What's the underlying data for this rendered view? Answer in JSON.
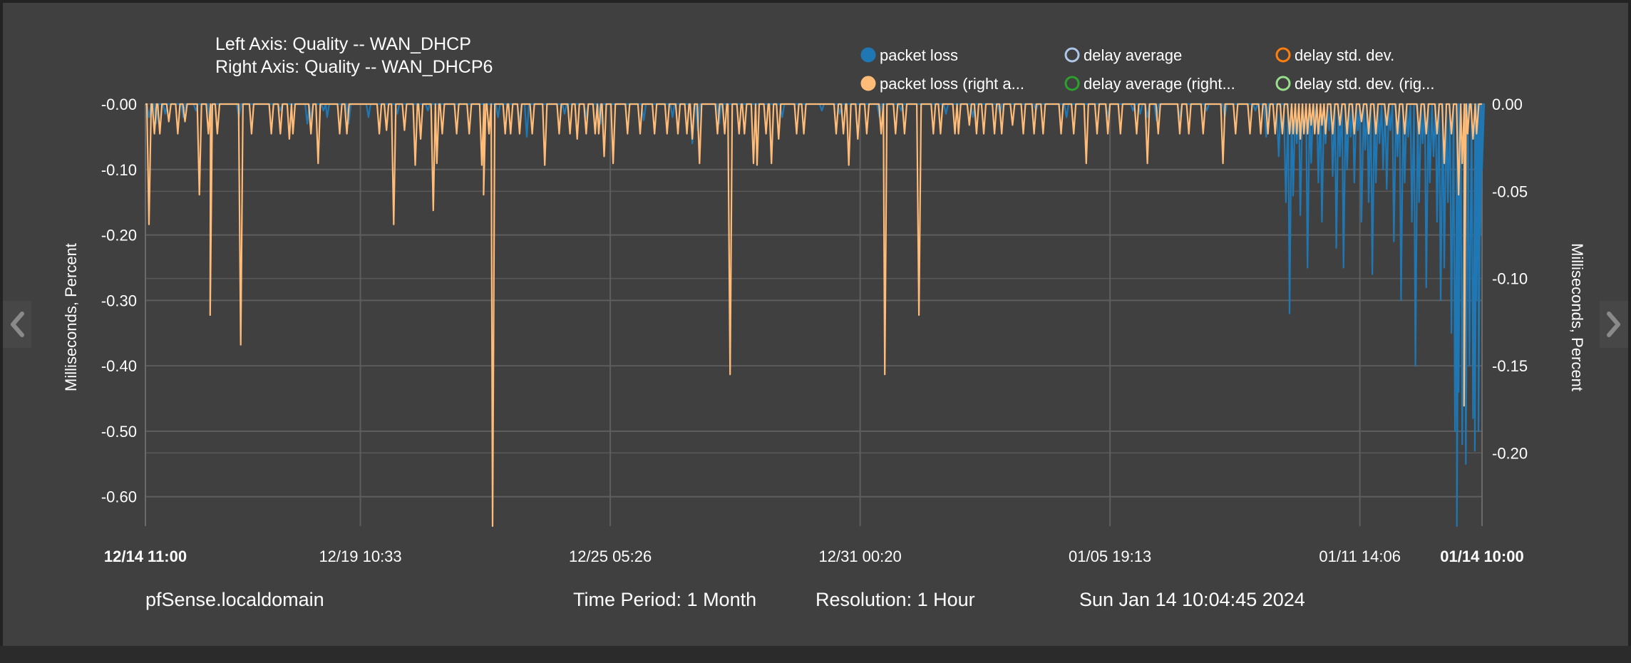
{
  "header": {
    "left_axis_label": "Left Axis: Quality -- WAN_DHCP",
    "right_axis_label": "Right Axis: Quality -- WAN_DHCP6"
  },
  "legend": [
    {
      "label": "packet loss",
      "color": "#1f77b4",
      "filled": true
    },
    {
      "label": "delay average",
      "color": "#aec7e8",
      "filled": false
    },
    {
      "label": "delay std. dev.",
      "color": "#ff7f0e",
      "filled": false
    },
    {
      "label": "packet loss (right a...",
      "color": "#ffbb78",
      "filled": true
    },
    {
      "label": "delay average (right...",
      "color": "#2ca02c",
      "filled": false
    },
    {
      "label": "delay std. dev. (rig...",
      "color": "#98df8a",
      "filled": false
    }
  ],
  "footer": {
    "hostname": "pfSense.localdomain",
    "time_period": "Time Period: 1 Month",
    "resolution": "Resolution: 1 Hour",
    "timestamp": "Sun Jan 14 10:04:45 2024"
  },
  "nav": {
    "prev_icon": "chevron-left-icon",
    "next_icon": "chevron-right-icon"
  },
  "chart_data": {
    "type": "line",
    "xlabel": "",
    "ylabel": "Milliseconds, Percent",
    "y2label": "Milliseconds, Percent",
    "x_range": [
      "12/14 11:00",
      "01/14 10:00"
    ],
    "x_range_hours": [
      0,
      743
    ],
    "x_ticks": [
      {
        "label": "12/14 11:00",
        "hour": 0,
        "bold": true
      },
      {
        "label": "12/19 10:33",
        "hour": 119.5,
        "bold": false
      },
      {
        "label": "12/25 05:26",
        "hour": 258.4,
        "bold": false
      },
      {
        "label": "12/31 00:20",
        "hour": 397.3,
        "bold": false
      },
      {
        "label": "01/05 19:13",
        "hour": 536.2,
        "bold": false
      },
      {
        "label": "01/11 14:06",
        "hour": 675.1,
        "bold": false
      },
      {
        "label": "01/14 10:00",
        "hour": 743,
        "bold": true
      }
    ],
    "ylim": [
      -0.645,
      0
    ],
    "y_ticks": [
      {
        "value": 0,
        "label": "-0.00"
      },
      {
        "value": -0.1,
        "label": "-0.10"
      },
      {
        "value": -0.2,
        "label": "-0.20"
      },
      {
        "value": -0.3,
        "label": "-0.30"
      },
      {
        "value": -0.4,
        "label": "-0.40"
      },
      {
        "value": -0.5,
        "label": "-0.50"
      },
      {
        "value": -0.6,
        "label": "-0.60"
      }
    ],
    "y2lim": [
      -0.242,
      0
    ],
    "y2_ticks": [
      {
        "value": 0,
        "label": "0.00"
      },
      {
        "value": -0.05,
        "label": "-0.05"
      },
      {
        "value": -0.1,
        "label": "-0.10"
      },
      {
        "value": -0.15,
        "label": "-0.15"
      },
      {
        "value": -0.2,
        "label": "-0.20"
      }
    ],
    "grid": true,
    "legend_position": "top-right",
    "series": [
      {
        "name": "packet loss",
        "axis": "left",
        "color": "#1f77b4",
        "baseline": 0,
        "points": [
          [
            2,
            -0.02
          ],
          [
            6,
            -0.03
          ],
          [
            11,
            -0.015
          ],
          [
            21,
            -0.02
          ],
          [
            28,
            -0.01
          ],
          [
            36,
            -0.03
          ],
          [
            52,
            -0.02
          ],
          [
            75,
            -0.01
          ],
          [
            90,
            -0.03
          ],
          [
            92,
            -0.025
          ],
          [
            99,
            -0.01
          ],
          [
            101,
            -0.02
          ],
          [
            113,
            -0.03
          ],
          [
            124,
            -0.02
          ],
          [
            140,
            -0.015
          ],
          [
            157,
            -0.01
          ],
          [
            196,
            -0.02
          ],
          [
            208,
            -0.03
          ],
          [
            212,
            -0.05
          ],
          [
            233,
            -0.015
          ],
          [
            245,
            -0.02
          ],
          [
            253,
            -0.03
          ],
          [
            277,
            -0.025
          ],
          [
            293,
            -0.02
          ],
          [
            304,
            -0.06
          ],
          [
            307,
            -0.04
          ],
          [
            319,
            -0.03
          ],
          [
            354,
            -0.02
          ],
          [
            376,
            -0.01
          ],
          [
            386,
            -0.015
          ],
          [
            408,
            -0.02
          ],
          [
            420,
            -0.01
          ],
          [
            445,
            -0.015
          ],
          [
            460,
            -0.02
          ],
          [
            475,
            -0.015
          ],
          [
            495,
            -0.01
          ],
          [
            512,
            -0.02
          ],
          [
            535,
            -0.02
          ],
          [
            549,
            -0.01
          ],
          [
            553,
            -0.015
          ],
          [
            557,
            -0.02
          ],
          [
            562,
            -0.025
          ],
          [
            575,
            -0.02
          ],
          [
            590,
            -0.01
          ],
          [
            600,
            -0.02
          ],
          [
            617,
            -0.01
          ],
          [
            623,
            -0.05
          ],
          [
            630,
            -0.08
          ],
          [
            634,
            -0.15
          ],
          [
            636,
            -0.32
          ],
          [
            638,
            -0.14
          ],
          [
            640,
            -0.06
          ],
          [
            642,
            -0.17
          ],
          [
            644,
            -0.04
          ],
          [
            646,
            -0.25
          ],
          [
            648,
            -0.09
          ],
          [
            650,
            -0.02
          ],
          [
            652,
            -0.12
          ],
          [
            654,
            -0.18
          ],
          [
            656,
            -0.06
          ],
          [
            658,
            -0.04
          ],
          [
            660,
            -0.11
          ],
          [
            662,
            -0.22
          ],
          [
            664,
            -0.08
          ],
          [
            666,
            -0.25
          ],
          [
            668,
            -0.1
          ],
          [
            670,
            -0.05
          ],
          [
            672,
            -0.12
          ],
          [
            674,
            -0.04
          ],
          [
            676,
            -0.18
          ],
          [
            678,
            -0.07
          ],
          [
            680,
            -0.15
          ],
          [
            682,
            -0.26
          ],
          [
            684,
            -0.12
          ],
          [
            686,
            -0.06
          ],
          [
            688,
            -0.1
          ],
          [
            690,
            -0.13
          ],
          [
            692,
            -0.04
          ],
          [
            694,
            -0.21
          ],
          [
            696,
            -0.08
          ],
          [
            698,
            -0.3
          ],
          [
            700,
            -0.12
          ],
          [
            702,
            -0.05
          ],
          [
            704,
            -0.18
          ],
          [
            706,
            -0.4
          ],
          [
            708,
            -0.15
          ],
          [
            710,
            -0.06
          ],
          [
            712,
            -0.28
          ],
          [
            714,
            -0.12
          ],
          [
            716,
            -0.08
          ],
          [
            718,
            -0.18
          ],
          [
            720,
            -0.3
          ],
          [
            722,
            -0.25
          ],
          [
            724,
            -0.15
          ],
          [
            726,
            -0.35
          ],
          [
            728,
            -0.5
          ],
          [
            729,
            -0.645
          ],
          [
            730,
            -0.44
          ],
          [
            732,
            -0.52
          ],
          [
            734,
            -0.55
          ],
          [
            736,
            -0.4
          ],
          [
            738,
            -0.48
          ],
          [
            739,
            -0.53
          ],
          [
            740,
            -0.3
          ],
          [
            741,
            -0.5
          ],
          [
            742,
            -0.2
          ],
          [
            743,
            -0.1
          ]
        ]
      },
      {
        "name": "packet loss (right a...",
        "axis": "right",
        "color": "#ffbb78",
        "baseline": 0,
        "points": [
          [
            2,
            -0.069
          ],
          [
            5,
            -0.017
          ],
          [
            8,
            -0.017
          ],
          [
            13,
            -0.01
          ],
          [
            18,
            -0.017
          ],
          [
            22,
            -0.01
          ],
          [
            30,
            -0.052
          ],
          [
            35,
            -0.017
          ],
          [
            36,
            -0.121
          ],
          [
            40,
            -0.017
          ],
          [
            53,
            -0.138
          ],
          [
            59,
            -0.017
          ],
          [
            70,
            -0.017
          ],
          [
            75,
            -0.017
          ],
          [
            80,
            -0.02
          ],
          [
            82,
            -0.017
          ],
          [
            92,
            -0.017
          ],
          [
            96,
            -0.034
          ],
          [
            108,
            -0.017
          ],
          [
            112,
            -0.017
          ],
          [
            130,
            -0.017
          ],
          [
            134,
            -0.015
          ],
          [
            138,
            -0.069
          ],
          [
            144,
            -0.015
          ],
          [
            150,
            -0.035
          ],
          [
            153,
            -0.02
          ],
          [
            160,
            -0.061
          ],
          [
            162,
            -0.034
          ],
          [
            165,
            -0.017
          ],
          [
            173,
            -0.017
          ],
          [
            180,
            -0.017
          ],
          [
            187,
            -0.035
          ],
          [
            188,
            -0.052
          ],
          [
            191,
            -0.017
          ],
          [
            193,
            -0.242
          ],
          [
            200,
            -0.017
          ],
          [
            203,
            -0.017
          ],
          [
            208,
            -0.017
          ],
          [
            215,
            -0.017
          ],
          [
            222,
            -0.035
          ],
          [
            230,
            -0.017
          ],
          [
            236,
            -0.017
          ],
          [
            240,
            -0.02
          ],
          [
            245,
            -0.017
          ],
          [
            250,
            -0.017
          ],
          [
            252,
            -0.017
          ],
          [
            255,
            -0.03
          ],
          [
            260,
            -0.034
          ],
          [
            268,
            -0.017
          ],
          [
            275,
            -0.017
          ],
          [
            283,
            -0.017
          ],
          [
            290,
            -0.017
          ],
          [
            296,
            -0.017
          ],
          [
            301,
            -0.017
          ],
          [
            304,
            -0.02
          ],
          [
            308,
            -0.034
          ],
          [
            318,
            -0.017
          ],
          [
            322,
            -0.017
          ],
          [
            325,
            -0.155
          ],
          [
            330,
            -0.017
          ],
          [
            333,
            -0.017
          ],
          [
            338,
            -0.034
          ],
          [
            340,
            -0.035
          ],
          [
            345,
            -0.017
          ],
          [
            348,
            -0.034
          ],
          [
            352,
            -0.02
          ],
          [
            362,
            -0.017
          ],
          [
            366,
            -0.017
          ],
          [
            384,
            -0.017
          ],
          [
            388,
            -0.017
          ],
          [
            391,
            -0.035
          ],
          [
            396,
            -0.02
          ],
          [
            401,
            -0.017
          ],
          [
            409,
            -0.017
          ],
          [
            411,
            -0.155
          ],
          [
            417,
            -0.017
          ],
          [
            422,
            -0.017
          ],
          [
            430,
            -0.121
          ],
          [
            438,
            -0.017
          ],
          [
            442,
            -0.017
          ],
          [
            450,
            -0.017
          ],
          [
            452,
            -0.017
          ],
          [
            458,
            -0.012
          ],
          [
            462,
            -0.017
          ],
          [
            466,
            -0.017
          ],
          [
            472,
            -0.017
          ],
          [
            476,
            -0.017
          ],
          [
            482,
            -0.012
          ],
          [
            488,
            -0.017
          ],
          [
            494,
            -0.017
          ],
          [
            499,
            -0.017
          ],
          [
            509,
            -0.017
          ],
          [
            516,
            -0.017
          ],
          [
            523,
            -0.034
          ],
          [
            529,
            -0.017
          ],
          [
            535,
            -0.017
          ],
          [
            542,
            -0.017
          ],
          [
            551,
            -0.017
          ],
          [
            557,
            -0.034
          ],
          [
            563,
            -0.017
          ],
          [
            575,
            -0.017
          ],
          [
            580,
            -0.017
          ],
          [
            588,
            -0.017
          ],
          [
            599,
            -0.034
          ],
          [
            606,
            -0.017
          ],
          [
            614,
            -0.017
          ],
          [
            620,
            -0.017
          ],
          [
            624,
            -0.017
          ],
          [
            628,
            -0.017
          ],
          [
            632,
            -0.017
          ],
          [
            636,
            -0.017
          ],
          [
            638,
            -0.017
          ],
          [
            640,
            -0.017
          ],
          [
            642,
            -0.02
          ],
          [
            644,
            -0.017
          ],
          [
            646,
            -0.017
          ],
          [
            648,
            -0.012
          ],
          [
            650,
            -0.017
          ],
          [
            652,
            -0.017
          ],
          [
            654,
            -0.012
          ],
          [
            656,
            -0.017
          ],
          [
            660,
            -0.017
          ],
          [
            664,
            -0.012
          ],
          [
            668,
            -0.017
          ],
          [
            672,
            -0.017
          ],
          [
            676,
            -0.01
          ],
          [
            680,
            -0.017
          ],
          [
            684,
            -0.017
          ],
          [
            690,
            -0.012
          ],
          [
            696,
            -0.017
          ],
          [
            700,
            -0.017
          ],
          [
            708,
            -0.017
          ],
          [
            712,
            -0.017
          ],
          [
            718,
            -0.017
          ],
          [
            722,
            -0.034
          ],
          [
            726,
            -0.017
          ],
          [
            730,
            -0.052
          ],
          [
            732,
            -0.034
          ],
          [
            733,
            -0.173
          ],
          [
            735,
            -0.017
          ],
          [
            738,
            -0.02
          ],
          [
            740,
            -0.017
          ]
        ]
      }
    ]
  }
}
